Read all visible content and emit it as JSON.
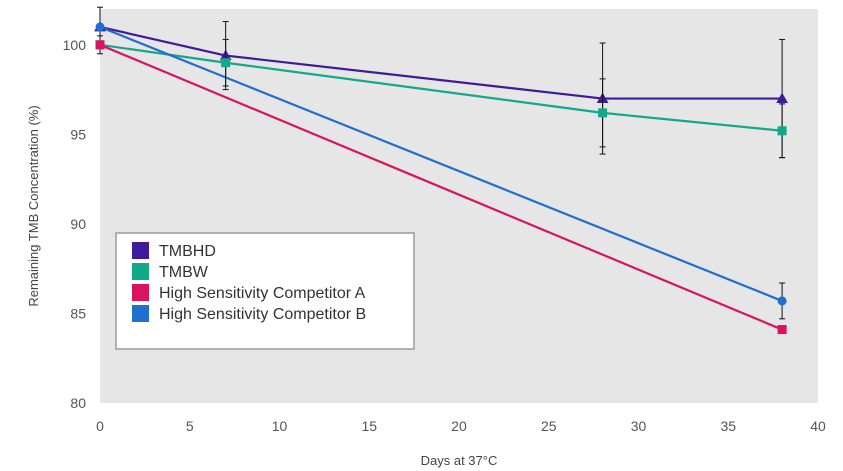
{
  "chart_data": {
    "type": "line",
    "xlabel": "Days at 37°C",
    "ylabel": "Remaining TMB Concentration (%)",
    "xlim": [
      0,
      40
    ],
    "ylim": [
      80,
      102
    ],
    "xticks": [
      0,
      5,
      10,
      15,
      20,
      25,
      30,
      35,
      40
    ],
    "yticks": [
      80,
      85,
      90,
      95,
      100
    ],
    "grid": false,
    "plot_background": "#e6e6e6",
    "legend_position": "lower-left",
    "series": [
      {
        "name": "TMBHD",
        "color": "#3f1a9b",
        "marker": "triangle",
        "x": [
          0,
          7,
          28,
          38
        ],
        "y": [
          101.0,
          99.4,
          97.0,
          97.0
        ],
        "error": [
          1.1,
          1.9,
          3.1,
          3.3
        ]
      },
      {
        "name": "TMBW",
        "color": "#14a88a",
        "marker": "square",
        "x": [
          0,
          7,
          28,
          38
        ],
        "y": [
          100.0,
          99.0,
          96.2,
          95.2
        ],
        "error": [
          0.5,
          1.3,
          1.9,
          1.5
        ]
      },
      {
        "name": "High Sensitivity Competitor A",
        "color": "#d9135e",
        "marker": "square",
        "x": [
          0,
          38
        ],
        "y": [
          100.0,
          84.1
        ],
        "error": [
          0,
          0
        ]
      },
      {
        "name": "High Sensitivity Competitor B",
        "color": "#1f6fd1",
        "marker": "circle",
        "x": [
          0,
          38
        ],
        "y": [
          101.0,
          85.7
        ],
        "error": [
          0,
          1.0
        ]
      }
    ]
  }
}
